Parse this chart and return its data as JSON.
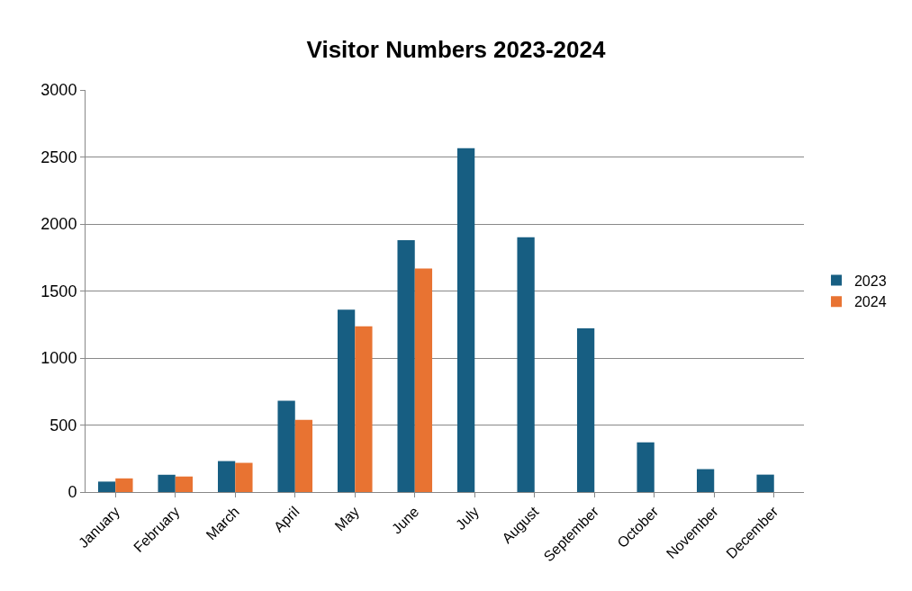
{
  "chart_data": {
    "type": "bar",
    "title": "Visitor Numbers 2023-2024",
    "categories": [
      "January",
      "February",
      "March",
      "April",
      "May",
      "June",
      "July",
      "August",
      "September",
      "October",
      "November",
      "December"
    ],
    "series": [
      {
        "name": "2023",
        "color": "#175e82",
        "values": [
          78,
          129,
          231,
          682,
          1361,
          1880,
          2565,
          1901,
          1221,
          370,
          171,
          130
        ]
      },
      {
        "name": "2024",
        "color": "#e87332",
        "values": [
          102,
          116,
          218,
          539,
          1236,
          1668,
          null,
          null,
          null,
          null,
          null,
          null
        ]
      }
    ],
    "ylim": [
      0,
      3000
    ],
    "yticks": [
      0,
      500,
      1000,
      1500,
      2000,
      2500,
      3000
    ],
    "grid": "y",
    "legend": "right"
  }
}
